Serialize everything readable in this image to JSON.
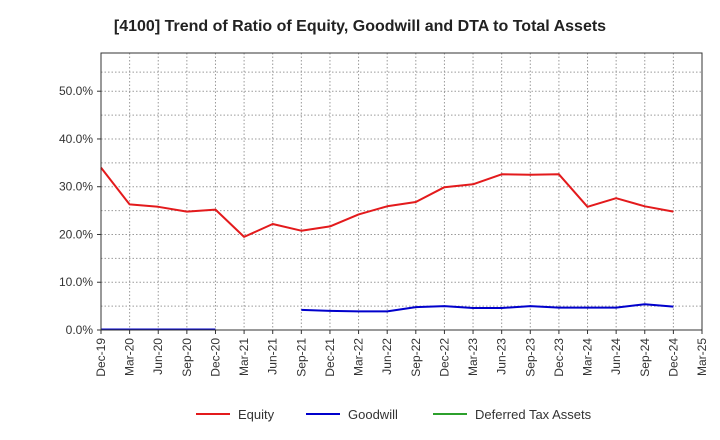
{
  "chart_data": {
    "type": "line",
    "title": "[4100]  Trend of Ratio of Equity, Goodwill and DTA to Total Assets",
    "xlabel": "",
    "ylabel": "",
    "ylim": [
      0,
      58
    ],
    "y_ticks": [
      "0.0%",
      "10.0%",
      "20.0%",
      "30.0%",
      "40.0%",
      "50.0%"
    ],
    "y_tick_values": [
      0,
      10,
      20,
      30,
      40,
      50
    ],
    "x": [
      "Dec-19",
      "Mar-20",
      "Jun-20",
      "Sep-20",
      "Dec-20",
      "Mar-21",
      "Jun-21",
      "Sep-21",
      "Dec-21",
      "Mar-22",
      "Jun-22",
      "Sep-22",
      "Dec-22",
      "Mar-23",
      "Jun-23",
      "Sep-23",
      "Dec-23",
      "Mar-24",
      "Jun-24",
      "Sep-24",
      "Dec-24",
      "Mar-25"
    ],
    "grid": true,
    "legend_position": "bottom",
    "series": [
      {
        "name": "Equity",
        "color": "#e31a1c",
        "values": [
          34.0,
          26.3,
          25.8,
          24.8,
          25.2,
          19.5,
          22.2,
          20.8,
          21.7,
          24.2,
          25.9,
          26.8,
          29.9,
          30.5,
          32.6,
          32.5,
          32.6,
          25.8,
          27.6,
          25.9,
          24.8,
          null
        ]
      },
      {
        "name": "Goodwill",
        "color": "#0000cc",
        "values": [
          0.1,
          0.1,
          0.1,
          0.1,
          0.1,
          null,
          null,
          4.2,
          4.0,
          3.9,
          3.9,
          4.8,
          5.0,
          4.6,
          4.6,
          5.0,
          4.7,
          4.7,
          4.7,
          5.4,
          4.9,
          null
        ]
      },
      {
        "name": "Deferred Tax Assets",
        "color": "#2ca02c",
        "values": [
          null,
          null,
          null,
          null,
          null,
          null,
          null,
          null,
          null,
          null,
          null,
          null,
          null,
          null,
          null,
          null,
          null,
          null,
          null,
          null,
          null,
          null
        ]
      }
    ]
  }
}
